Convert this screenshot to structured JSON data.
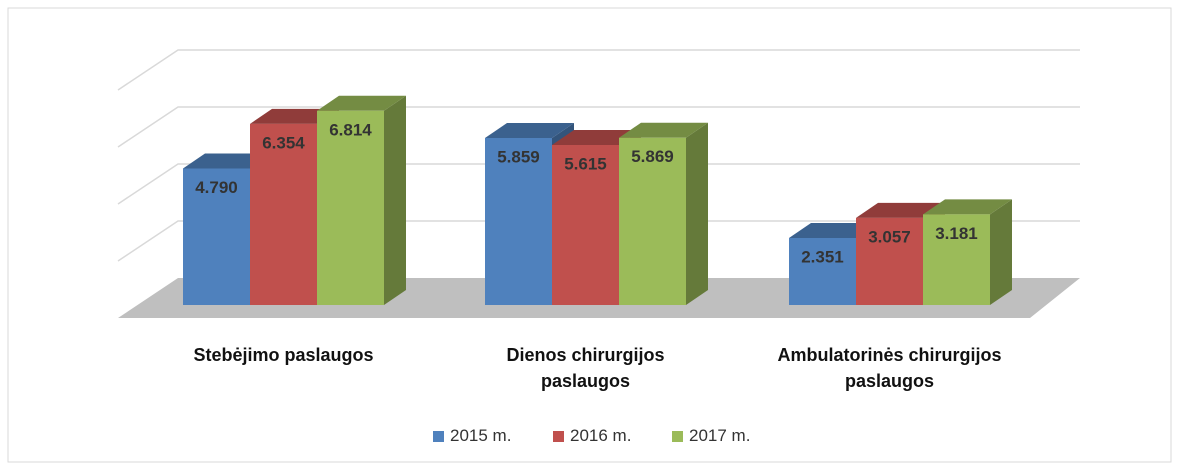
{
  "chart_data": {
    "type": "bar3d",
    "categories": [
      "Stebėjimo paslaugos",
      "Dienos chirurgijos paslaugos",
      "Ambulatorinės chirurgijos paslaugos"
    ],
    "series": [
      {
        "name": "2015 m.",
        "color": "#4f81bd",
        "values": [
          4.79,
          5.859,
          2.351
        ],
        "value_labels": [
          "4.790",
          "5.859",
          "2.351"
        ]
      },
      {
        "name": "2016 m.",
        "color": "#c0504d",
        "values": [
          6.354,
          5.615,
          3.057
        ],
        "value_labels": [
          "6.354",
          "5.615",
          "3.057"
        ]
      },
      {
        "name": "2017 m.",
        "color": "#9bbb59",
        "values": [
          6.814,
          5.869,
          3.181
        ],
        "value_labels": [
          "6.814",
          "5.869",
          "3.181"
        ]
      }
    ],
    "ylim": [
      0,
      8
    ],
    "yticks": [
      0,
      2,
      4,
      6,
      8
    ],
    "grid": true,
    "legend": "bottom"
  }
}
